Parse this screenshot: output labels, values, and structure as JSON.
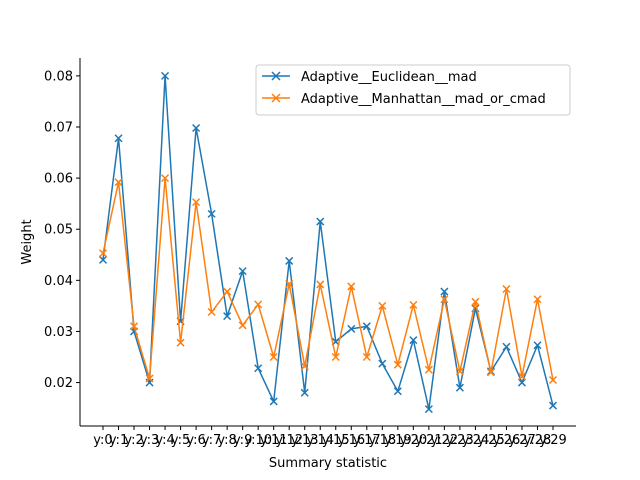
{
  "chart_data": {
    "type": "line",
    "xlabel": "Summary statistic",
    "ylabel": "Weight",
    "categories": [
      "y:0",
      "y:1",
      "y:2",
      "y:3",
      "y:4",
      "y:5",
      "y:6",
      "y:7",
      "y:8",
      "y:9",
      "y:10",
      "y:11",
      "y:12",
      "y:13",
      "y:14",
      "y:15",
      "y:16",
      "y:17",
      "y:18",
      "y:19",
      "y:20",
      "y:21",
      "y:22",
      "y:23",
      "y:24",
      "y:25",
      "y:26",
      "y:27",
      "y:28",
      "y:29"
    ],
    "ylim": [
      0.0115,
      0.0835
    ],
    "yticks": [
      0.02,
      0.03,
      0.04,
      0.05,
      0.06,
      0.07,
      0.08
    ],
    "ytick_labels": [
      "0.02",
      "0.03",
      "0.04",
      "0.05",
      "0.06",
      "0.07",
      "0.08"
    ],
    "legend_position": "top-right",
    "marker": "x",
    "series": [
      {
        "name": "Adaptive__Euclidean__mad",
        "color": "#1f77b4",
        "values": [
          0.044,
          0.0678,
          0.03,
          0.02,
          0.08,
          0.032,
          0.0698,
          0.053,
          0.033,
          0.0418,
          0.0228,
          0.0163,
          0.0438,
          0.018,
          0.0515,
          0.028,
          0.0305,
          0.031,
          0.0237,
          0.0183,
          0.0283,
          0.0148,
          0.0378,
          0.019,
          0.0345,
          0.0222,
          0.027,
          0.02,
          0.0273,
          0.0155
        ]
      },
      {
        "name": "Adaptive__Manhattan__mad_or_cmad",
        "color": "#ff7f0e",
        "values": [
          0.0453,
          0.0592,
          0.031,
          0.0208,
          0.06,
          0.0278,
          0.0553,
          0.0338,
          0.0378,
          0.0312,
          0.0353,
          0.025,
          0.0393,
          0.0232,
          0.0392,
          0.025,
          0.0388,
          0.025,
          0.035,
          0.0235,
          0.0352,
          0.0225,
          0.0363,
          0.0222,
          0.0358,
          0.022,
          0.0383,
          0.0212,
          0.0363,
          0.0205
        ]
      }
    ]
  }
}
